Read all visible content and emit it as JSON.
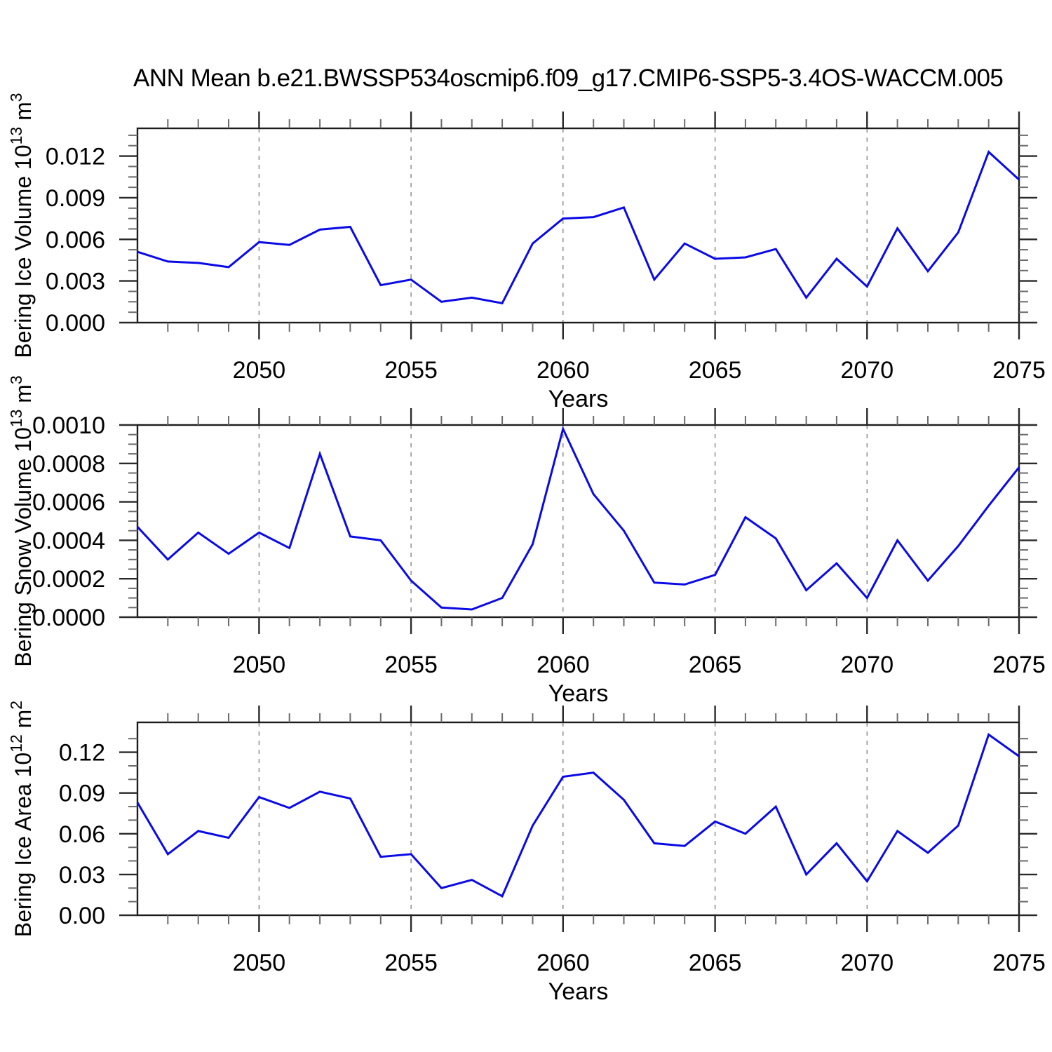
{
  "title": "ANN Mean b.e21.BWSSP534oscmip6.f09_g17.CMIP6-SSP5-3.4OS-WACCM.005",
  "xlabel": "Years",
  "years": [
    2046,
    2047,
    2048,
    2049,
    2050,
    2051,
    2052,
    2053,
    2054,
    2055,
    2056,
    2057,
    2058,
    2059,
    2060,
    2061,
    2062,
    2063,
    2064,
    2065,
    2066,
    2067,
    2068,
    2069,
    2070,
    2071,
    2072,
    2073,
    2074,
    2075
  ],
  "x_axis": {
    "start": 2046,
    "end": 2075,
    "major_ticks": [
      2050,
      2055,
      2060,
      2065,
      2070,
      2075
    ],
    "major_labels": [
      "2050",
      "2055",
      "2060",
      "2065",
      "2070",
      "2075"
    ],
    "minor_step": 1,
    "grid_lines": [
      2050,
      2055,
      2060,
      2065,
      2070
    ]
  },
  "colors": {
    "line": "#0a0ae6",
    "frame": "#1c1c1c",
    "tick": "#2a2a2a",
    "minor_tick": "#6b6b6b",
    "grid": "#858585",
    "text": "#000000",
    "background": "#ffffff"
  },
  "chart_data": [
    {
      "id": "ice-volume",
      "type": "line",
      "series_name": "Bering Ice Volume",
      "ylabel": {
        "main": "Bering Ice Volume 10",
        "sup1": "13",
        "mid": " m",
        "sup2": "3"
      },
      "ylim": [
        0,
        0.014
      ],
      "y_major": [
        {
          "v": 0.0,
          "label": "0.000"
        },
        {
          "v": 0.003,
          "label": "0.003"
        },
        {
          "v": 0.006,
          "label": "0.006"
        },
        {
          "v": 0.009,
          "label": "0.009"
        },
        {
          "v": 0.012,
          "label": "0.012"
        }
      ],
      "y_minor_step": 0.00075,
      "grid": "vertical-dashed",
      "legend": "none",
      "values": [
        0.0051,
        0.0044,
        0.0043,
        0.004,
        0.0058,
        0.0056,
        0.0067,
        0.0069,
        0.0027,
        0.0031,
        0.0015,
        0.0018,
        0.0014,
        0.0057,
        0.0075,
        0.0076,
        0.0083,
        0.0031,
        0.0057,
        0.0046,
        0.0047,
        0.0053,
        0.0018,
        0.0046,
        0.0026,
        0.0068,
        0.0037,
        0.0065,
        0.0123,
        0.0103
      ]
    },
    {
      "id": "snow-volume",
      "type": "line",
      "series_name": "Bering Snow Volume",
      "ylabel": {
        "main": "Bering Snow Volume 10",
        "sup1": "13",
        "mid": " m",
        "sup2": "3"
      },
      "ylim": [
        0,
        0.001
      ],
      "y_major": [
        {
          "v": 0.0,
          "label": "0.0000"
        },
        {
          "v": 0.0002,
          "label": "0.0002"
        },
        {
          "v": 0.0004,
          "label": "0.0004"
        },
        {
          "v": 0.0006,
          "label": "0.0006"
        },
        {
          "v": 0.0008,
          "label": "0.0008"
        },
        {
          "v": 0.001,
          "label": "0.0010"
        }
      ],
      "y_minor_step": 5e-05,
      "grid": "vertical-dashed",
      "legend": "none",
      "values": [
        0.00047,
        0.0003,
        0.00044,
        0.00033,
        0.00044,
        0.00036,
        0.00085,
        0.00042,
        0.0004,
        0.00019,
        5e-05,
        4e-05,
        0.0001,
        0.00038,
        0.00098,
        0.00064,
        0.00045,
        0.00018,
        0.00017,
        0.00022,
        0.00052,
        0.00041,
        0.00014,
        0.00028,
        0.0001,
        0.0004,
        0.00019,
        0.00037,
        0.00058,
        0.00078
      ]
    },
    {
      "id": "ice-area",
      "type": "line",
      "series_name": "Bering Ice Area",
      "ylabel": {
        "main": "Bering Ice Area 10",
        "sup1": "12",
        "mid": " m",
        "sup2": "2"
      },
      "ylim": [
        0,
        0.142
      ],
      "y_major": [
        {
          "v": 0.0,
          "label": "0.00"
        },
        {
          "v": 0.03,
          "label": "0.03"
        },
        {
          "v": 0.06,
          "label": "0.06"
        },
        {
          "v": 0.09,
          "label": "0.09"
        },
        {
          "v": 0.12,
          "label": "0.12"
        }
      ],
      "y_minor_step": 0.01,
      "grid": "vertical-dashed",
      "legend": "none",
      "values": [
        0.083,
        0.045,
        0.062,
        0.057,
        0.087,
        0.079,
        0.091,
        0.086,
        0.043,
        0.045,
        0.02,
        0.026,
        0.014,
        0.066,
        0.102,
        0.105,
        0.085,
        0.053,
        0.051,
        0.069,
        0.06,
        0.08,
        0.03,
        0.053,
        0.025,
        0.062,
        0.046,
        0.066,
        0.133,
        0.117
      ]
    }
  ]
}
